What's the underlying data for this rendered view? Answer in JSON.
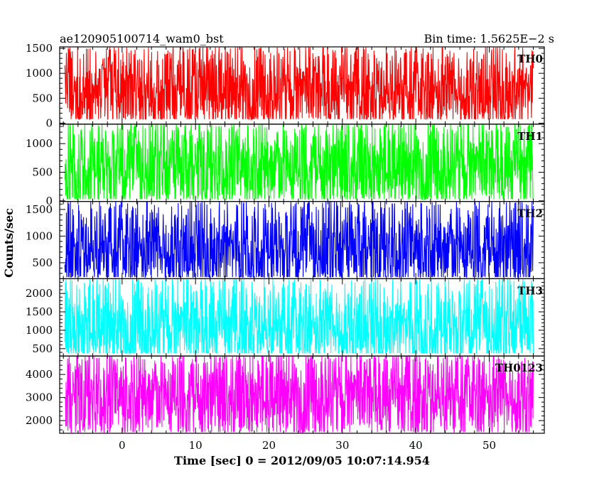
{
  "header": {
    "left_title": "ae120905100714_wam0_bst",
    "right_title": "Bin time: 1.5625E−2 s"
  },
  "chart_data": {
    "type": "line",
    "xlabel": "Time [sec] 0 = 2012/09/05 10:07:14.954",
    "ylabel": "Counts/sec",
    "xlim": [
      -8.5,
      57.5
    ],
    "x_ticks": [
      0,
      10,
      20,
      30,
      40,
      50
    ],
    "x_range_data": [
      -7.8,
      56
    ],
    "bin_time": 0.015625,
    "panels": [
      {
        "name": "TH0",
        "color": "#ff0000",
        "ylim": [
          -20,
          1530
        ],
        "y_ticks": [
          0,
          500,
          1000,
          1500
        ],
        "y_mean": 650,
        "y_min": 80,
        "y_max": 1520
      },
      {
        "name": "TH1",
        "color": "#00ff00",
        "ylim": [
          -10,
          1340
        ],
        "y_ticks": [
          0,
          500,
          1000
        ],
        "y_mean": 600,
        "y_min": 30,
        "y_max": 1340
      },
      {
        "name": "TH2",
        "color": "#0000ff",
        "ylim": [
          200,
          1650
        ],
        "y_ticks": [
          500,
          1000,
          1500
        ],
        "y_mean": 770,
        "y_min": 230,
        "y_max": 1650
      },
      {
        "name": "TH3",
        "color": "#00ffff",
        "ylim": [
          300,
          2400
        ],
        "y_ticks": [
          500,
          1000,
          1500,
          2000
        ],
        "y_mean": 1100,
        "y_min": 380,
        "y_max": 2400
      },
      {
        "name": "TH0123",
        "color": "#ff00ff",
        "ylim": [
          1450,
          4800
        ],
        "y_ticks": [
          2000,
          3000,
          4000
        ],
        "y_mean": 3100,
        "y_min": 1500,
        "y_max": 4800
      }
    ]
  }
}
